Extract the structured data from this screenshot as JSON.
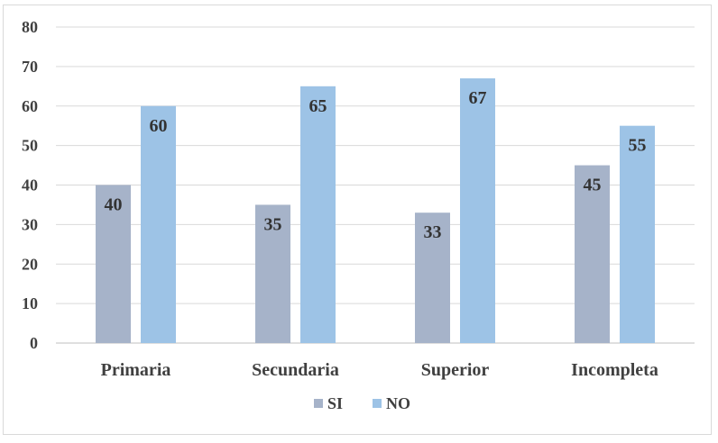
{
  "chart_data": {
    "type": "bar",
    "title": "",
    "xlabel": "",
    "ylabel": "",
    "ylim": [
      0,
      80
    ],
    "yticks": [
      0,
      10,
      20,
      30,
      40,
      50,
      60,
      70,
      80
    ],
    "grid": true,
    "legend_position": "bottom",
    "categories": [
      "Primaria",
      "Secundaria",
      "Superior",
      "Incompleta"
    ],
    "series": [
      {
        "name": "SI",
        "color": "#a6b3c9",
        "values": [
          40,
          35,
          33,
          45
        ]
      },
      {
        "name": "NO",
        "color": "#9dc3e6",
        "values": [
          60,
          65,
          67,
          55
        ]
      }
    ]
  }
}
